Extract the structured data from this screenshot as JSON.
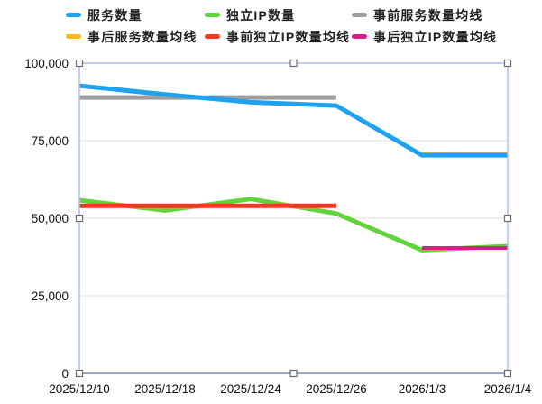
{
  "legend": {
    "items": [
      {
        "label": "服务数量",
        "color": "#1FA3F0"
      },
      {
        "label": "独立IP数量",
        "color": "#63D33C"
      },
      {
        "label": "事前服务数量均线",
        "color": "#9E9E9E"
      },
      {
        "label": "事后服务数量均线",
        "color": "#F9BC15"
      },
      {
        "label": "事前独立IP数量均线",
        "color": "#F23A22"
      },
      {
        "label": "事后独立IP数量均线",
        "color": "#D5208A"
      }
    ]
  },
  "chart_data": {
    "type": "line",
    "categories": [
      "2025/12/10",
      "2025/12/18",
      "2025/12/24",
      "2025/12/26",
      "2026/1/3",
      "2026/1/4"
    ],
    "series": [
      {
        "name": "服务数量",
        "color": "#1FA3F0",
        "values": [
          92700,
          89900,
          87400,
          86300,
          70300,
          70300
        ]
      },
      {
        "name": "独立IP数量",
        "color": "#63D33C",
        "values": [
          55800,
          52500,
          56200,
          51500,
          39700,
          41000
        ]
      },
      {
        "name": "事前服务数量均线",
        "color": "#9E9E9E",
        "values": [
          88900,
          88900,
          88900,
          88900,
          null,
          null
        ]
      },
      {
        "name": "事后服务数量均线",
        "color": "#F9BC15",
        "values": [
          null,
          null,
          null,
          null,
          70800,
          70800
        ]
      },
      {
        "name": "事前独立IP数量均线",
        "color": "#F23A22",
        "values": [
          54000,
          54000,
          54000,
          54000,
          null,
          null
        ]
      },
      {
        "name": "事后独立IP数量均线",
        "color": "#D5208A",
        "values": [
          null,
          null,
          null,
          null,
          40400,
          40400
        ]
      }
    ],
    "ylim": [
      0,
      100000
    ],
    "ytick_values": [
      100000,
      75000,
      50000,
      25000,
      0
    ],
    "ytick_labels": [
      "100,000",
      "75,000",
      "50,000",
      "25,000",
      "0"
    ],
    "xlabel": "",
    "ylabel": "",
    "title": "",
    "grid": true,
    "legend_position": "top"
  },
  "selection": {
    "active": true,
    "handle_count": 8
  },
  "colors": {
    "axis_line": "#3E4E6B",
    "gridline": "#E3E3E3",
    "selection_border": "#AEC3F0",
    "handle_fill": "#FFFFFF",
    "handle_border": "#6E6E6E",
    "label_text": "#111111"
  }
}
